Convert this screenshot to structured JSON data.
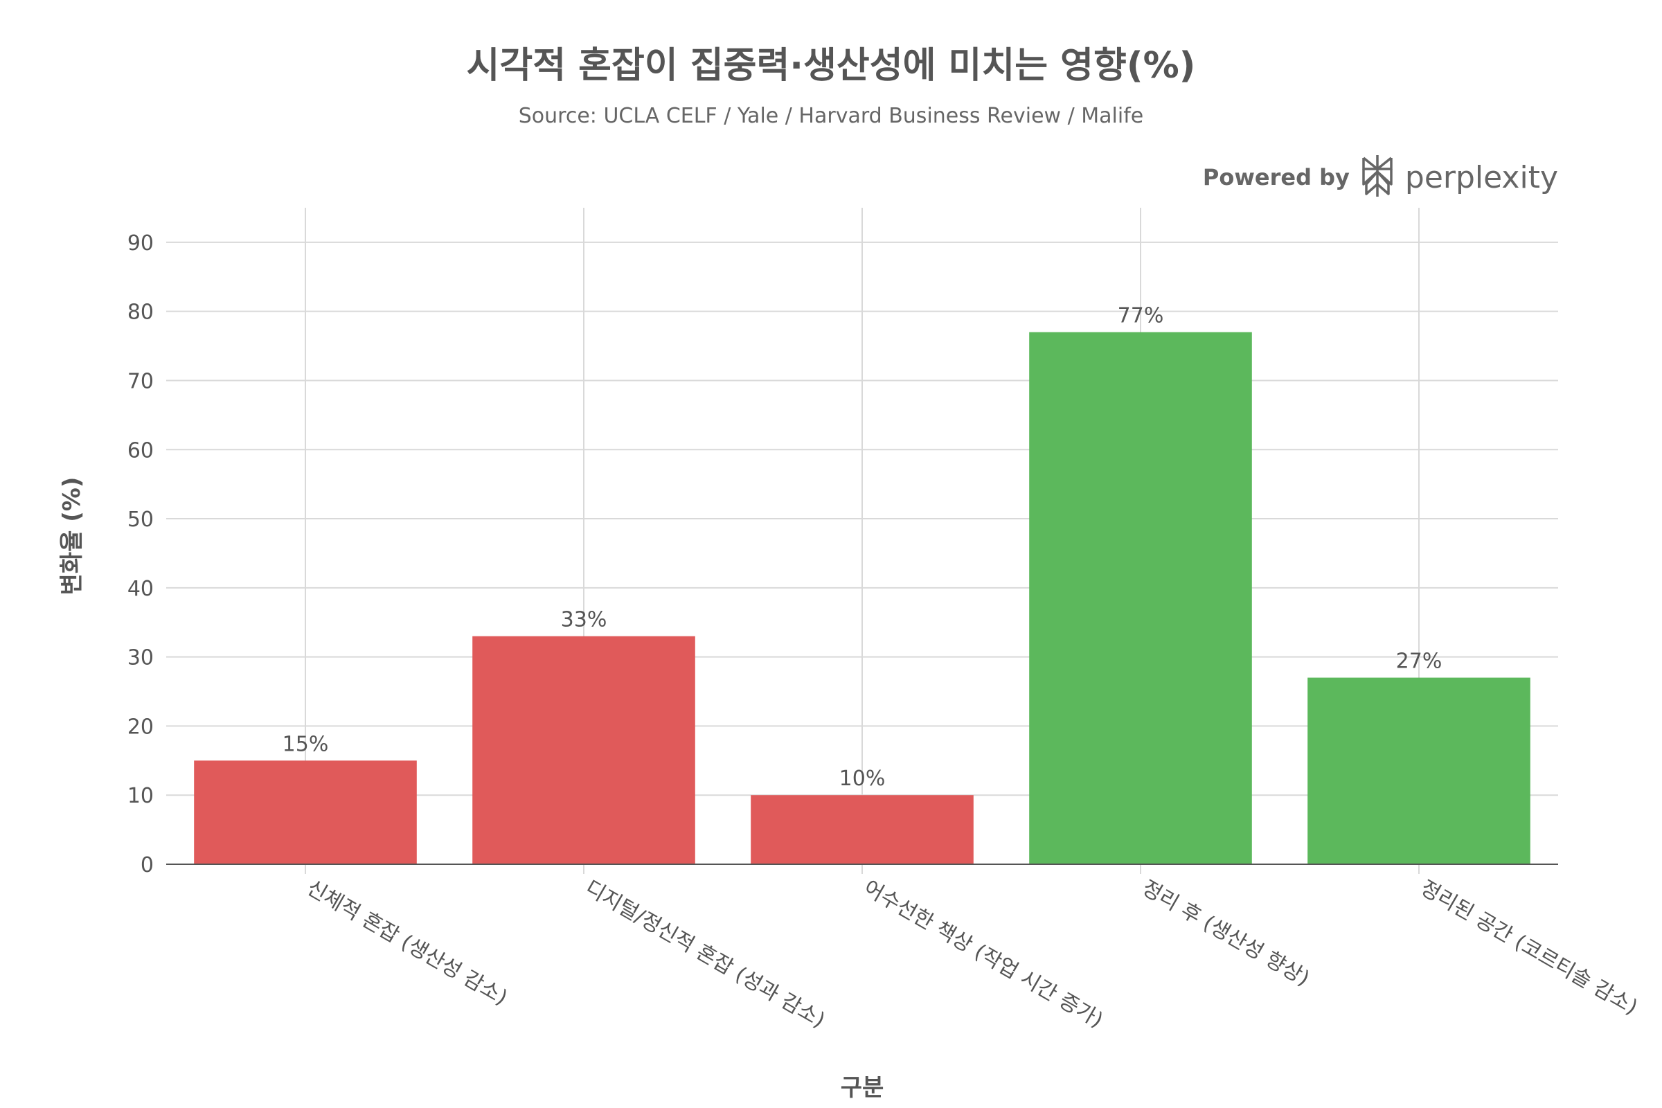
{
  "chart_data": {
    "type": "bar",
    "title": "시각적 혼잡이 집중력·생산성에 미치는 영향(%)",
    "subtitle": "Source: UCLA CELF / Yale / Harvard Business Review / Malife",
    "xlabel": "구분",
    "ylabel": "변화율 (%)",
    "ylim": [
      0,
      95
    ],
    "yticks": [
      0,
      10,
      20,
      30,
      40,
      50,
      60,
      70,
      80,
      90
    ],
    "grid": true,
    "categories": [
      "신체적 혼잡 (생산성 감소)",
      "디지털/정신적 혼잡 (성과 감소)",
      "어수선한 책상 (작업 시간 증가)",
      "정리 후 (생산성 향상)",
      "정리된 공간 (코르티솔 감소)"
    ],
    "values": [
      15,
      33,
      10,
      77,
      27
    ],
    "data_labels": [
      "15%",
      "33%",
      "10%",
      "77%",
      "27%"
    ],
    "bar_colors": [
      "#E05A5A",
      "#E05A5A",
      "#E05A5A",
      "#5CB85C",
      "#5CB85C"
    ]
  },
  "branding": {
    "powered_by": "Powered by",
    "name": "perplexity",
    "logo_icon": "perplexity-logo-icon"
  },
  "colors": {
    "negative": "#E05A5A",
    "positive": "#5CB85C",
    "grid": "#D9D9D9",
    "text": "#555555"
  }
}
